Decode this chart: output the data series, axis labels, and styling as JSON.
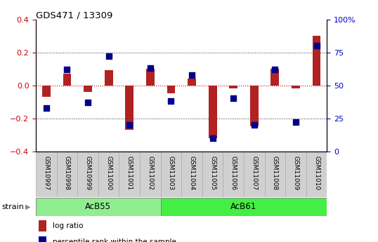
{
  "title": "GDS471 / 13309",
  "samples": [
    "GSM10997",
    "GSM10998",
    "GSM10999",
    "GSM11000",
    "GSM11001",
    "GSM11002",
    "GSM11003",
    "GSM11004",
    "GSM11005",
    "GSM11006",
    "GSM11007",
    "GSM11008",
    "GSM11009",
    "GSM11010"
  ],
  "log_ratio": [
    -0.07,
    0.07,
    -0.04,
    0.09,
    -0.27,
    0.1,
    -0.05,
    0.04,
    -0.32,
    -0.02,
    -0.25,
    0.1,
    -0.02,
    0.3
  ],
  "percentile": [
    33,
    62,
    37,
    72,
    20,
    63,
    38,
    58,
    10,
    40,
    20,
    62,
    22,
    80
  ],
  "bar_color": "#b22222",
  "dot_color": "#00008b",
  "ylim": [
    -0.4,
    0.4
  ],
  "yticks_left": [
    -0.4,
    -0.2,
    0.0,
    0.2,
    0.4
  ],
  "yticks_right": [
    0,
    25,
    50,
    75,
    100
  ],
  "ytick_labels_right": [
    "0",
    "25",
    "50",
    "75",
    "100%"
  ],
  "zero_line_color": "#cc0000",
  "grid_line_color": "#333333",
  "background_color": "#ffffff",
  "acb55_color": "#90ee90",
  "acb61_color": "#44ee44",
  "acb55_label": "AcB55",
  "acb61_label": "AcB61",
  "acb55_samples": 6,
  "acb61_samples": 8,
  "strain_label": "strain",
  "legend_log_ratio": "log ratio",
  "legend_percentile": "percentile rank within the sample",
  "bar_width": 0.4,
  "dot_size": 35
}
